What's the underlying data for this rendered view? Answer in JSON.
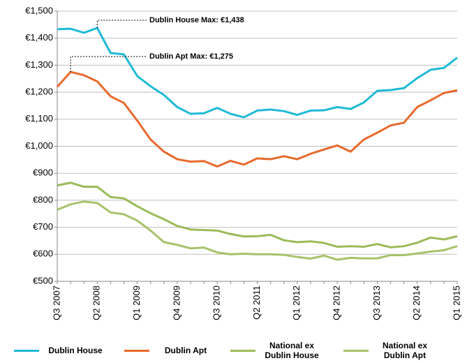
{
  "chart_data": {
    "type": "line",
    "categories": [
      "Q3 2007",
      null,
      null,
      "Q2 2008",
      null,
      null,
      "Q1 2009",
      null,
      null,
      "Q4 2009",
      null,
      null,
      "Q3 2010",
      null,
      null,
      "Q2 2011",
      null,
      null,
      "Q1 2012",
      null,
      null,
      "Q4 2012",
      null,
      null,
      "Q3 2013",
      null,
      null,
      "Q2 2014",
      null,
      null,
      "Q1 2015"
    ],
    "series": [
      {
        "name": "Dublin House",
        "color": "#1fbad6",
        "values": [
          1433,
          1435,
          1420,
          1438,
          1345,
          1340,
          1260,
          1222,
          1190,
          1145,
          1120,
          1122,
          1142,
          1120,
          1107,
          1132,
          1136,
          1130,
          1116,
          1132,
          1133,
          1145,
          1138,
          1162,
          1205,
          1208,
          1215,
          1252,
          1283,
          1290,
          1328
        ]
      },
      {
        "name": "Dublin Apt",
        "color": "#e8692d",
        "values": [
          1220,
          1275,
          1263,
          1240,
          1185,
          1160,
          1095,
          1025,
          980,
          952,
          943,
          945,
          925,
          946,
          932,
          955,
          952,
          963,
          952,
          972,
          988,
          1003,
          980,
          1025,
          1050,
          1077,
          1087,
          1145,
          1170,
          1197,
          1207
        ]
      },
      {
        "name": "National ex Dublin House",
        "color": "#9bbb59",
        "values": [
          855,
          865,
          850,
          850,
          812,
          807,
          778,
          752,
          730,
          705,
          692,
          690,
          688,
          675,
          666,
          667,
          672,
          652,
          645,
          648,
          642,
          628,
          630,
          628,
          638,
          626,
          630,
          643,
          662,
          655,
          667
        ]
      },
      {
        "name": "National ex Dublin Apt",
        "color": "#a7c26a",
        "values": [
          765,
          785,
          795,
          790,
          755,
          748,
          725,
          688,
          645,
          635,
          622,
          625,
          607,
          600,
          602,
          600,
          600,
          598,
          590,
          584,
          595,
          580,
          587,
          585,
          585,
          597,
          597,
          603,
          610,
          615,
          630
        ]
      }
    ],
    "annotations": [
      "Dublin House Max: €1,438",
      "Dublin Apt Max: €1,275"
    ],
    "ylim": [
      500,
      1500
    ],
    "yticks": [
      {
        "value": 500,
        "label": "€500"
      },
      {
        "value": 600,
        "label": "€600"
      },
      {
        "value": 700,
        "label": "€700"
      },
      {
        "value": 800,
        "label": "€800"
      },
      {
        "value": 900,
        "label": "€900"
      },
      {
        "value": 1000,
        "label": "€1,000"
      },
      {
        "value": 1100,
        "label": "€1,100"
      },
      {
        "value": 1200,
        "label": "€1,200"
      },
      {
        "value": 1300,
        "label": "€1,300"
      },
      {
        "value": 1400,
        "label": "€1,400"
      },
      {
        "value": 1500,
        "label": "€1,500"
      }
    ],
    "grid": true,
    "legend": "bottom"
  }
}
